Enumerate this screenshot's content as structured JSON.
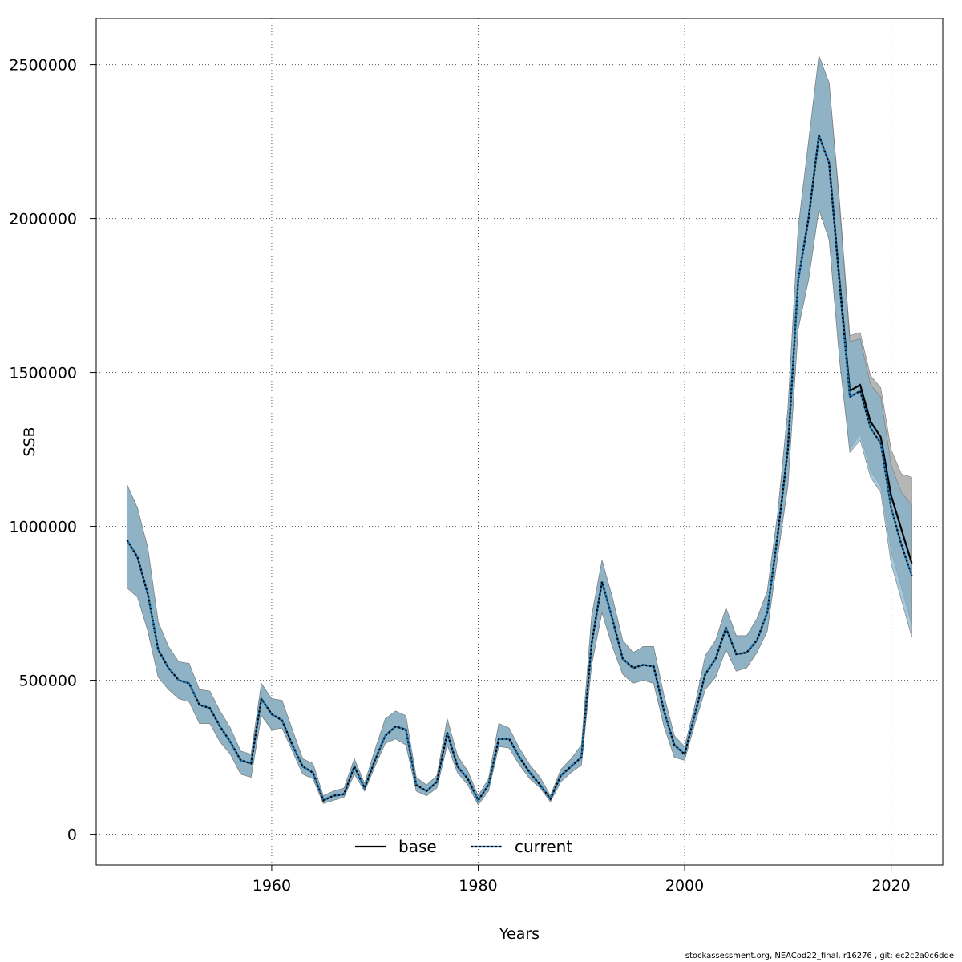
{
  "chart_data": {
    "type": "line",
    "xlabel": "Years",
    "ylabel": "SSB",
    "xlim": [
      1943,
      2025
    ],
    "ylim": [
      -100000,
      2650000
    ],
    "x_ticks": [
      1960,
      1980,
      2000,
      2020
    ],
    "y_ticks": [
      0,
      500000,
      1000000,
      1500000,
      2000000,
      2500000
    ],
    "grid": true,
    "legend_position": "bottom-center",
    "x": [
      1946,
      1947,
      1948,
      1949,
      1950,
      1951,
      1952,
      1953,
      1954,
      1955,
      1956,
      1957,
      1958,
      1959,
      1960,
      1961,
      1962,
      1963,
      1964,
      1965,
      1966,
      1967,
      1968,
      1969,
      1970,
      1971,
      1972,
      1973,
      1974,
      1975,
      1976,
      1977,
      1978,
      1979,
      1980,
      1981,
      1982,
      1983,
      1984,
      1985,
      1986,
      1987,
      1988,
      1989,
      1990,
      1991,
      1992,
      1993,
      1994,
      1995,
      1996,
      1997,
      1998,
      1999,
      2000,
      2001,
      2002,
      2003,
      2004,
      2005,
      2006,
      2007,
      2008,
      2009,
      2010,
      2011,
      2012,
      2013,
      2014,
      2015,
      2016,
      2017,
      2018,
      2019,
      2020,
      2021,
      2022
    ],
    "series": [
      {
        "name": "base",
        "line_color": "#000000",
        "band_color": "#9e9e9e",
        "values": [
          955000,
          900000,
          780000,
          600000,
          540000,
          500000,
          490000,
          420000,
          410000,
          350000,
          300000,
          240000,
          230000,
          440000,
          390000,
          370000,
          290000,
          220000,
          200000,
          110000,
          125000,
          130000,
          220000,
          150000,
          240000,
          320000,
          350000,
          340000,
          160000,
          140000,
          170000,
          330000,
          220000,
          180000,
          110000,
          160000,
          310000,
          310000,
          250000,
          200000,
          160000,
          115000,
          190000,
          220000,
          250000,
          620000,
          820000,
          700000,
          570000,
          540000,
          550000,
          545000,
          400000,
          290000,
          260000,
          390000,
          520000,
          570000,
          670000,
          585000,
          590000,
          630000,
          720000,
          970000,
          1250000,
          1800000,
          2000000,
          2270000,
          2180000,
          1800000,
          1440000,
          1460000,
          1340000,
          1290000,
          1100000,
          990000,
          880000
        ],
        "lower": [
          800000,
          770000,
          660000,
          510000,
          470000,
          440000,
          430000,
          360000,
          360000,
          300000,
          260000,
          195000,
          185000,
          385000,
          340000,
          345000,
          270000,
          195000,
          180000,
          100000,
          110000,
          120000,
          195000,
          140000,
          220000,
          295000,
          310000,
          290000,
          140000,
          125000,
          150000,
          290000,
          200000,
          160000,
          95000,
          140000,
          285000,
          280000,
          225000,
          180000,
          150000,
          105000,
          170000,
          200000,
          225000,
          550000,
          720000,
          610000,
          520000,
          490000,
          500000,
          490000,
          350000,
          250000,
          240000,
          360000,
          470000,
          510000,
          600000,
          530000,
          540000,
          590000,
          660000,
          900000,
          1130000,
          1640000,
          1800000,
          2030000,
          1930000,
          1550000,
          1250000,
          1300000,
          1180000,
          1130000,
          920000,
          800000,
          680000
        ],
        "upper": [
          1135000,
          1060000,
          930000,
          690000,
          610000,
          560000,
          555000,
          470000,
          465000,
          400000,
          345000,
          270000,
          260000,
          490000,
          440000,
          435000,
          340000,
          245000,
          230000,
          125000,
          140000,
          150000,
          245000,
          165000,
          275000,
          375000,
          400000,
          385000,
          185000,
          160000,
          190000,
          375000,
          255000,
          205000,
          125000,
          180000,
          360000,
          345000,
          280000,
          225000,
          185000,
          125000,
          210000,
          245000,
          290000,
          710000,
          890000,
          770000,
          630000,
          590000,
          610000,
          610000,
          450000,
          320000,
          285000,
          420000,
          580000,
          630000,
          735000,
          645000,
          645000,
          700000,
          790000,
          1040000,
          1380000,
          1970000,
          2250000,
          2530000,
          2440000,
          2060000,
          1620000,
          1630000,
          1490000,
          1450000,
          1250000,
          1170000,
          1160000
        ]
      },
      {
        "name": "current",
        "line_color": "#1f77b4",
        "band_color": "#7fb0cc",
        "values": [
          955000,
          900000,
          780000,
          600000,
          540000,
          500000,
          490000,
          420000,
          410000,
          350000,
          300000,
          240000,
          230000,
          440000,
          390000,
          370000,
          290000,
          220000,
          200000,
          110000,
          125000,
          130000,
          220000,
          150000,
          240000,
          320000,
          350000,
          340000,
          160000,
          140000,
          170000,
          330000,
          220000,
          180000,
          110000,
          160000,
          310000,
          310000,
          250000,
          200000,
          160000,
          115000,
          190000,
          220000,
          250000,
          620000,
          820000,
          700000,
          570000,
          540000,
          550000,
          545000,
          400000,
          290000,
          260000,
          390000,
          520000,
          570000,
          670000,
          585000,
          590000,
          630000,
          720000,
          970000,
          1250000,
          1800000,
          2000000,
          2270000,
          2180000,
          1790000,
          1420000,
          1440000,
          1320000,
          1270000,
          1060000,
          940000,
          840000
        ],
        "lower": [
          800000,
          770000,
          660000,
          510000,
          470000,
          440000,
          430000,
          360000,
          360000,
          300000,
          260000,
          195000,
          185000,
          385000,
          340000,
          345000,
          270000,
          195000,
          180000,
          100000,
          110000,
          120000,
          195000,
          140000,
          220000,
          295000,
          310000,
          290000,
          140000,
          125000,
          150000,
          290000,
          200000,
          160000,
          95000,
          140000,
          285000,
          280000,
          225000,
          180000,
          150000,
          105000,
          170000,
          200000,
          225000,
          550000,
          720000,
          610000,
          520000,
          490000,
          500000,
          490000,
          350000,
          250000,
          240000,
          360000,
          470000,
          510000,
          600000,
          530000,
          540000,
          590000,
          660000,
          900000,
          1130000,
          1640000,
          1800000,
          2030000,
          1930000,
          1540000,
          1240000,
          1280000,
          1160000,
          1110000,
          880000,
          760000,
          640000
        ],
        "upper": [
          1135000,
          1060000,
          930000,
          690000,
          610000,
          560000,
          555000,
          470000,
          465000,
          400000,
          345000,
          270000,
          260000,
          490000,
          440000,
          435000,
          340000,
          245000,
          230000,
          125000,
          140000,
          150000,
          245000,
          165000,
          275000,
          375000,
          400000,
          385000,
          185000,
          160000,
          190000,
          375000,
          255000,
          205000,
          125000,
          180000,
          360000,
          345000,
          280000,
          225000,
          185000,
          125000,
          210000,
          245000,
          290000,
          710000,
          890000,
          770000,
          630000,
          590000,
          610000,
          610000,
          450000,
          320000,
          285000,
          420000,
          580000,
          630000,
          735000,
          645000,
          645000,
          700000,
          790000,
          1040000,
          1380000,
          1970000,
          2250000,
          2530000,
          2440000,
          2040000,
          1600000,
          1610000,
          1460000,
          1420000,
          1200000,
          1110000,
          1070000
        ]
      }
    ],
    "legend": [
      {
        "label": "base",
        "style": "solid"
      },
      {
        "label": "current",
        "style": "dotted"
      }
    ]
  },
  "footer": "stockassessment.org, NEACod22_final, r16276 , git: ec2c2a0c6dde"
}
